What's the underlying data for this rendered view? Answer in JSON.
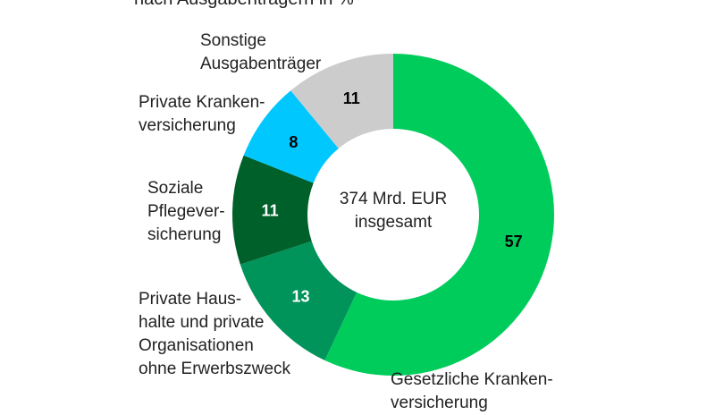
{
  "chart_data": {
    "type": "pie",
    "title": "nach Ausgabenträgern in %",
    "center_text": [
      "374 Mrd. EUR",
      "insgesamt"
    ],
    "unit": "%",
    "slices": [
      {
        "label": "Gesetzliche Kranken-\nversicherung",
        "value": 57,
        "color": "#00cc5c",
        "label_color": "#000000"
      },
      {
        "label": "Private Haus-\nhalte und private\nOrganisationen\nohne Erwerbszweck",
        "value": 13,
        "color": "#00935a",
        "label_color": "#ffffff"
      },
      {
        "label": "Soziale\nPflegever-\nsicherung",
        "value": 11,
        "color": "#00602a",
        "label_color": "#ffffff"
      },
      {
        "label": "Private Kranken-\nversicherung",
        "value": 8,
        "color": "#00c8ff",
        "label_color": "#000000"
      },
      {
        "label": "Sonstige\nAusgabenträger",
        "value": 11,
        "color": "#cccccc",
        "label_color": "#000000"
      }
    ]
  }
}
